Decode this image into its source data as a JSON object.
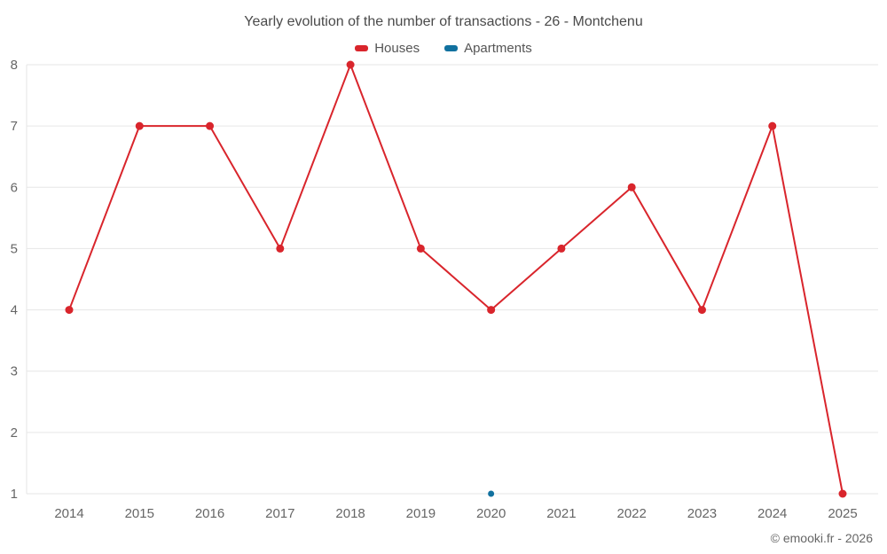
{
  "title": "Yearly evolution of the number of transactions - 26 - Montchenu",
  "credit": "© emooki.fr - 2026",
  "colors": {
    "houses": "#d9252c",
    "apartments": "#11719f",
    "grid": "#e6e6e6",
    "axis_text": "#666666",
    "title_text": "#4a4a4a"
  },
  "chart_data": {
    "type": "line",
    "title": "Yearly evolution of the number of transactions - 26 - Montchenu",
    "categories": [
      "2014",
      "2015",
      "2016",
      "2017",
      "2018",
      "2019",
      "2020",
      "2021",
      "2022",
      "2023",
      "2024",
      "2025"
    ],
    "series": [
      {
        "name": "Houses",
        "color": "#d9252c",
        "marker_radius": 4.5,
        "values": [
          4,
          7,
          7,
          5,
          8,
          5,
          4,
          5,
          6,
          4,
          7,
          1
        ]
      },
      {
        "name": "Apartments",
        "color": "#11719f",
        "marker_radius": 3.5,
        "values": [
          null,
          null,
          null,
          null,
          null,
          null,
          1,
          null,
          null,
          null,
          null,
          null
        ]
      }
    ],
    "xlabel": "",
    "ylabel": "",
    "ylim": [
      1,
      8
    ],
    "yticks": [
      1,
      2,
      3,
      4,
      5,
      6,
      7,
      8
    ],
    "grid": "horizontal",
    "legend_position": "top"
  }
}
